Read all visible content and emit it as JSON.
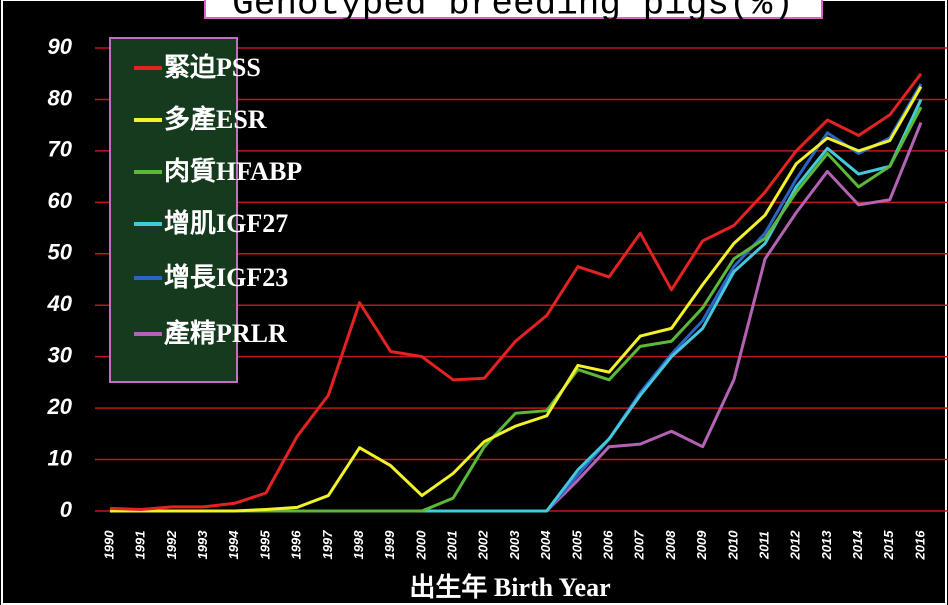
{
  "chart_data": {
    "type": "line",
    "title": "Genotyped breeding pigs(%)",
    "x_label": "出生年 Birth Year",
    "categories": [
      "1990",
      "1991",
      "1992",
      "1993",
      "1994",
      "1995",
      "1996",
      "1997",
      "1998",
      "1999",
      "2000",
      "2001",
      "2002",
      "2003",
      "2004",
      "2005",
      "2006",
      "2007",
      "2008",
      "2009",
      "2010",
      "2011",
      "2012",
      "2013",
      "2014",
      "2015",
      "2016"
    ],
    "series": [
      {
        "name": "緊迫PSS",
        "color": "#e42222",
        "values": [
          0.5,
          0.3,
          0.8,
          0.8,
          1.5,
          3.5,
          14.5,
          22.5,
          40.5,
          31,
          30,
          25.5,
          25.8,
          33,
          38,
          47.5,
          45.5,
          54,
          43,
          52.5,
          55.5,
          62,
          70,
          76,
          73,
          77,
          85
        ]
      },
      {
        "name": "多產ESR",
        "color": "#f2f22a",
        "values": [
          0,
          0,
          0,
          0,
          0,
          0.3,
          0.7,
          3,
          12.3,
          8.8,
          3,
          7.3,
          13.5,
          16.5,
          18.5,
          28.3,
          27,
          34,
          35.5,
          44,
          52,
          57.5,
          67.5,
          72.5,
          70,
          72,
          82.5
        ]
      },
      {
        "name": "肉質HFABP",
        "color": "#5cb838",
        "values": [
          0,
          0,
          0,
          0,
          0,
          0,
          0,
          0,
          0,
          0,
          0,
          2.5,
          12.5,
          19,
          19.5,
          27.5,
          25.5,
          32,
          33,
          39.5,
          49,
          53,
          62,
          69.5,
          63,
          67,
          78.5
        ]
      },
      {
        "name": "增肌IGF27",
        "color": "#44c8dc",
        "values": [
          0,
          0,
          0,
          0,
          0,
          0,
          0,
          0,
          0,
          0,
          0,
          0,
          0,
          0,
          0,
          8,
          14,
          22.5,
          30,
          35.5,
          46.5,
          52,
          63,
          70.5,
          65.5,
          67,
          80
        ]
      },
      {
        "name": "增長IGF23",
        "color": "#2a64c4",
        "values": [
          0,
          0,
          0,
          0,
          0,
          0,
          0,
          0,
          0,
          0,
          0,
          0,
          0,
          0,
          0,
          7,
          14,
          23,
          30.5,
          37,
          47.5,
          54,
          64.5,
          73.5,
          69.5,
          72.5,
          83
        ]
      },
      {
        "name": "產精PRLR",
        "color": "#b462b4",
        "values": [
          0,
          0,
          0,
          0,
          0,
          0,
          0,
          0,
          0,
          0,
          0,
          0,
          0,
          0,
          0,
          6,
          12.5,
          13,
          15.5,
          12.5,
          25.5,
          49,
          58,
          66,
          59.5,
          60.5,
          75.5
        ]
      }
    ],
    "ylim": [
      0,
      90
    ],
    "yticks": [
      0,
      10,
      20,
      30,
      40,
      50,
      60,
      70,
      80,
      90
    ],
    "grid": true,
    "legend": "upper left"
  }
}
